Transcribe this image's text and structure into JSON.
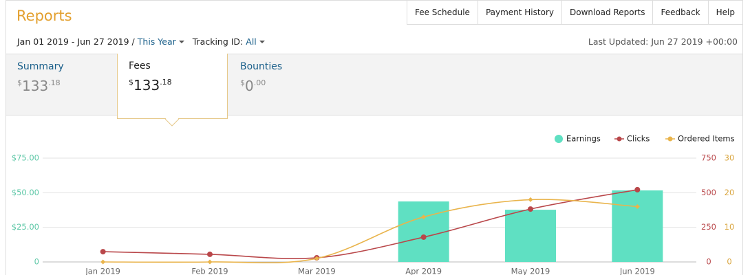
{
  "header": {
    "title": "Reports",
    "nav": [
      "Fee Schedule",
      "Payment History",
      "Download Reports",
      "Feedback",
      "Help"
    ],
    "date_range": "Jan 01 2019 - Jun 27 2019 /",
    "period": "This Year",
    "tracking_label": "Tracking ID:",
    "tracking_value": "All",
    "last_updated": "Last Updated: Jun 27 2019 +00:00"
  },
  "tabs": [
    {
      "label": "Summary",
      "currency": "$",
      "whole": "133",
      "cents": ".18"
    },
    {
      "label": "Fees",
      "currency": "$",
      "whole": "133",
      "cents": ".18"
    },
    {
      "label": "Bounties",
      "currency": "$",
      "whole": "0",
      "cents": ".00"
    }
  ],
  "chart_data": {
    "type": "bar-line",
    "categories": [
      "Jan 2019",
      "Feb 2019",
      "Mar 2019",
      "Apr 2019",
      "May 2019",
      "Jun 2019"
    ],
    "series": [
      {
        "name": "Earnings",
        "type": "bar",
        "axis": "y",
        "color": "#5fe0c2",
        "values": [
          0,
          0,
          0,
          43.7,
          37.7,
          51.7
        ]
      },
      {
        "name": "Clicks",
        "type": "line",
        "axis": "y2",
        "color": "#b9474a",
        "values": [
          74,
          55,
          30,
          179,
          382,
          522
        ]
      },
      {
        "name": "Ordered Items",
        "type": "line",
        "axis": "y3",
        "color": "#e9b44c",
        "values": [
          0,
          0,
          1,
          13,
          18,
          16
        ]
      }
    ],
    "ylim": [
      0,
      75
    ],
    "yticks": [
      0,
      {
        "value": 25,
        "label": "$25.00"
      },
      {
        "value": 50,
        "label": "$50.00"
      },
      {
        "value": 75,
        "label": "$75.00"
      }
    ],
    "y2lim": [
      0,
      750
    ],
    "y2ticks": [
      0,
      250,
      500,
      750
    ],
    "y3lim": [
      0,
      30
    ],
    "y3ticks": [
      0,
      10,
      20,
      30
    ],
    "grid": true,
    "legend": "top-right"
  }
}
